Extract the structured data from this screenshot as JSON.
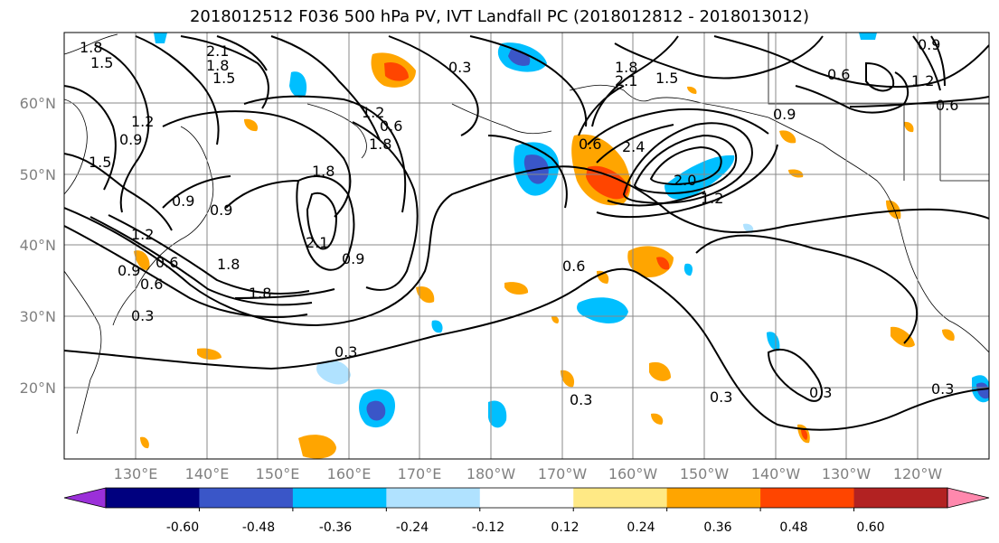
{
  "title": "2018012512 F036 500 hPa PV, IVT Landfall PC (2018012812 - 2018013012)",
  "lat_labels": [
    "60°N",
    "50°N",
    "40°N",
    "30°N",
    "20°N"
  ],
  "lon_labels": [
    "130°E",
    "140°E",
    "150°E",
    "160°E",
    "170°E",
    "180°W",
    "170°W",
    "160°W",
    "150°W",
    "140°W",
    "130°W",
    "120°W"
  ],
  "colorbar": {
    "colors": [
      "#9b30d9",
      "#00007f",
      "#3a56c8",
      "#00bfff",
      "#b0e2ff",
      "#ffffff",
      "#ffe985",
      "#ffa500",
      "#ff4500",
      "#b22222",
      "#ff88ad"
    ],
    "tick_labels": [
      "-0.60",
      "-0.48",
      "-0.36",
      "-0.24",
      "-0.12",
      "0.12",
      "0.24",
      "0.36",
      "0.48",
      "0.60"
    ]
  },
  "contour_labels": [
    "1.8",
    "1.5",
    "2.1",
    "1.8",
    "1.5",
    "1.2",
    "0.9",
    "1.5",
    "0.9",
    "1.2",
    "0.6",
    "0.9",
    "1.8",
    "0.3",
    "0.6",
    "1.8",
    "2.1",
    "0.9",
    "1.8",
    "1.2",
    "0.6",
    "0.9",
    "1.8",
    "2.1",
    "1.8",
    "2.4",
    "1.5",
    "0.6",
    "0.9",
    "0.9",
    "0.6",
    "1.2",
    "0.6",
    "0.3",
    "0.3",
    "0.3",
    "0.3",
    "0.3",
    "0.3",
    "2.0",
    "1.2",
    "0.6"
  ]
}
